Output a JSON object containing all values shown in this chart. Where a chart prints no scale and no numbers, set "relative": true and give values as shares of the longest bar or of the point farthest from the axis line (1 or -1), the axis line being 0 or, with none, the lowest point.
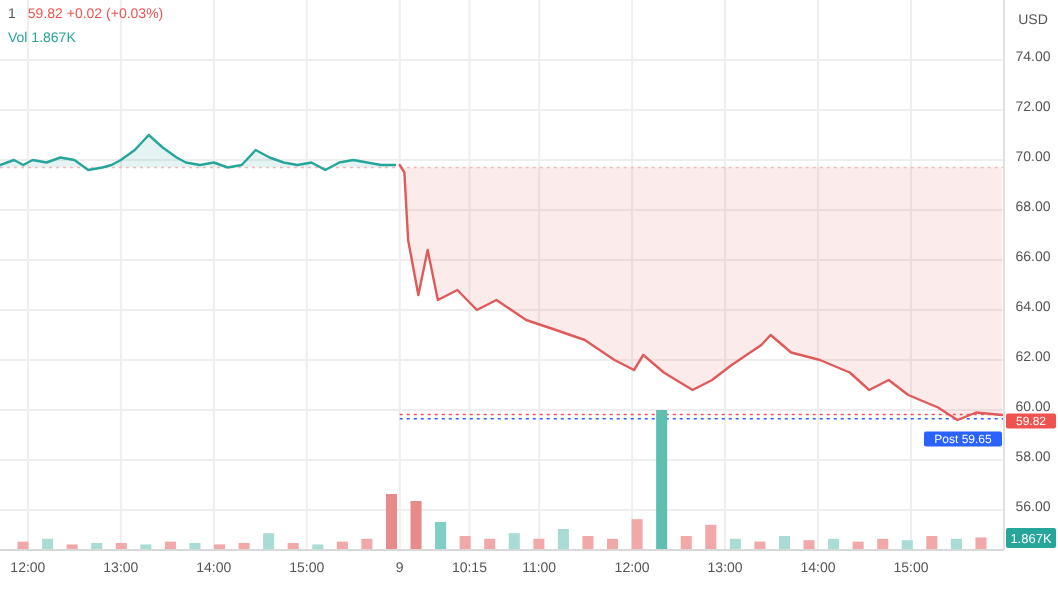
{
  "chart_data": [
    {
      "type": "line",
      "title": "1",
      "subtitle": "59.82 +0.02 (+0.03%)",
      "annotations": [
        "Vol 1.867K"
      ],
      "tick_labels": "x",
      "xlim": [
        11.7,
        16.0
      ],
      "ylim": [
        54.4,
        76.4
      ],
      "xticks": [
        {
          "value": 12,
          "label": "12:00"
        },
        {
          "value": 13,
          "label": "13:00"
        },
        {
          "value": 14,
          "label": "14:00"
        },
        {
          "value": 15,
          "label": "15:00"
        }
      ],
      "yticks": [
        56,
        58,
        60,
        62,
        64,
        66,
        68,
        70,
        72,
        74
      ],
      "grid": true,
      "ref_lines": [
        {
          "axis": "y",
          "value": 69.7,
          "color": "#f4b6b6",
          "line_style": "dotted"
        }
      ],
      "series": [
        {
          "color": "#26a69a",
          "x": [
            11.7,
            11.85,
            11.95,
            12.05,
            12.2,
            12.35,
            12.5,
            12.65,
            12.8,
            12.9,
            13.0,
            13.15,
            13.3,
            13.45,
            13.6,
            13.7,
            13.85,
            14.0,
            14.15,
            14.3,
            14.45,
            14.6,
            14.75,
            14.9,
            15.05,
            15.2,
            15.35,
            15.5,
            15.65,
            15.8,
            15.95
          ],
          "values": [
            69.8,
            70.0,
            69.8,
            70.0,
            69.9,
            70.1,
            70.0,
            69.6,
            69.7,
            69.8,
            70.0,
            70.4,
            71.0,
            70.5,
            70.1,
            69.9,
            69.8,
            69.9,
            69.7,
            69.8,
            70.4,
            70.1,
            69.9,
            69.8,
            69.9,
            69.6,
            69.9,
            70.0,
            69.9,
            69.8,
            69.8
          ]
        }
      ]
    },
    {
      "type": "line",
      "ylabel": "USD",
      "xlim": [
        9.5,
        16.0
      ],
      "ylim": [
        54.4,
        76.4
      ],
      "xticks": [
        {
          "value": 9.5,
          "label": "9"
        },
        {
          "value": 10.25,
          "label": "10:15"
        },
        {
          "value": 11,
          "label": "11:00"
        },
        {
          "value": 12,
          "label": "12:00"
        },
        {
          "value": 13,
          "label": "13:00"
        },
        {
          "value": 14,
          "label": "14:00"
        },
        {
          "value": 15,
          "label": "15:00"
        }
      ],
      "yticks": [
        {
          "value": 56,
          "label": "56.00"
        },
        {
          "value": 58,
          "label": "58.00"
        },
        {
          "value": 60,
          "label": "60.00"
        },
        {
          "value": 62,
          "label": "62.00"
        },
        {
          "value": 64,
          "label": "64.00"
        },
        {
          "value": 66,
          "label": "66.00"
        },
        {
          "value": 68,
          "label": "68.00"
        },
        {
          "value": 70,
          "label": "70.00"
        },
        {
          "value": 72,
          "label": "72.00"
        },
        {
          "value": 74,
          "label": "74.00"
        }
      ],
      "grid": true,
      "ref_lines": [
        {
          "axis": "y",
          "value": 69.7,
          "color": "#f4b6b6",
          "line_style": "dotted"
        },
        {
          "axis": "y",
          "value": 59.82,
          "label": "59.82",
          "color": "#ef5350",
          "line_style": "dotted"
        },
        {
          "axis": "y",
          "value": 59.65,
          "label": "Post 59.65",
          "color": "#2962ff",
          "line_style": "dotted"
        }
      ],
      "series": [
        {
          "color": "#e05a5a",
          "x": [
            9.5,
            9.55,
            9.59,
            9.7,
            9.8,
            9.91,
            10.12,
            10.33,
            10.54,
            10.86,
            11.18,
            11.49,
            11.81,
            12.02,
            12.12,
            12.34,
            12.65,
            12.86,
            13.07,
            13.39,
            13.49,
            13.71,
            14.02,
            14.34,
            14.55,
            14.76,
            14.97,
            15.29,
            15.5,
            15.7,
            15.98
          ],
          "values": [
            69.8,
            69.5,
            66.8,
            64.6,
            66.4,
            64.4,
            64.8,
            64.0,
            64.4,
            63.6,
            63.2,
            62.8,
            62.0,
            61.6,
            62.2,
            61.5,
            60.8,
            61.2,
            61.8,
            62.6,
            63.0,
            62.3,
            62.0,
            61.5,
            60.8,
            61.2,
            60.6,
            60.1,
            59.6,
            59.9,
            59.8
          ]
        }
      ]
    },
    {
      "type": "bar",
      "relative": true,
      "annotations": [
        "1.867K"
      ],
      "categories": [
        null,
        null,
        null,
        null,
        null,
        null,
        null,
        null,
        null,
        null,
        null,
        null,
        null,
        null,
        null,
        null,
        null,
        null,
        null,
        null,
        null,
        null,
        null,
        null,
        null,
        null,
        null,
        null,
        null,
        null,
        null,
        null,
        null,
        null,
        null,
        null,
        null,
        null,
        null,
        null
      ],
      "values": [
        0.06,
        0.08,
        0.04,
        0.05,
        0.05,
        0.04,
        0.06,
        0.05,
        0.04,
        0.05,
        0.12,
        0.05,
        0.04,
        0.06,
        0.08,
        0.4,
        0.35,
        0.2,
        0.1,
        0.08,
        0.12,
        0.08,
        0.15,
        0.1,
        0.08,
        0.22,
        1,
        0.1,
        0.18,
        0.08,
        0.06,
        0.1,
        0.07,
        0.08,
        0.06,
        0.08,
        0.07,
        0.1,
        0.08,
        0.09
      ],
      "colors": [
        "#f0a8a8",
        "#a8dcd5",
        "#f0a8a8",
        "#a8dcd5",
        "#f0a8a8",
        "#a8dcd5",
        "#f0a8a8",
        "#a8dcd5",
        "#f0a8a8",
        "#f0a8a8",
        "#a8dcd5",
        "#f0a8a8",
        "#a8dcd5",
        "#f0a8a8",
        "#f0a8a8",
        "#e88a8a",
        "#e88a8a",
        "#7fcfc4",
        "#f0a8a8",
        "#f0a8a8",
        "#a8dcd5",
        "#f0a8a8",
        "#a8dcd5",
        "#f0a8a8",
        "#f0a8a8",
        "#f0a8a8",
        "#5cbfb1",
        "#f0a8a8",
        "#f0a8a8",
        "#a8dcd5",
        "#f0a8a8",
        "#a8dcd5",
        "#f0a8a8",
        "#a8dcd5",
        "#f0a8a8",
        "#f0a8a8",
        "#a8dcd5",
        "#f0a8a8",
        "#a8dcd5",
        "#f0a8a8"
      ]
    }
  ]
}
